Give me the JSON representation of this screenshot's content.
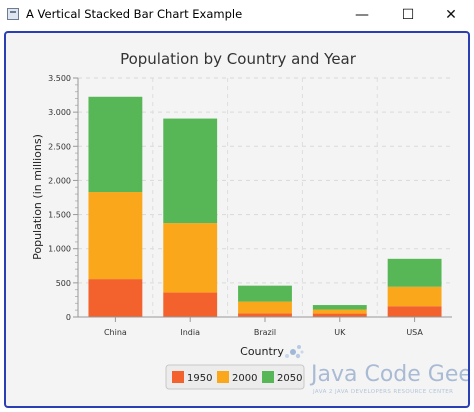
{
  "window": {
    "title": "A Vertical Stacked Bar Chart Example",
    "minimize_glyph": "—",
    "maximize_glyph": "☐",
    "close_glyph": "✕"
  },
  "watermark": {
    "line1": "Java Code Geeks",
    "line2": "JAVA 2 JAVA DEVELOPERS RESOURCE CENTER"
  },
  "chart_data": {
    "type": "bar",
    "stacked": true,
    "title": "Population by Country and Year",
    "xlabel": "Country",
    "ylabel": "Population (in millions)",
    "categories": [
      "China",
      "India",
      "Brazil",
      "UK",
      "USA"
    ],
    "series": [
      {
        "name": "1950",
        "color": "#f3622d",
        "values": [
          555,
          358,
          54,
          50,
          158
        ]
      },
      {
        "name": "2000",
        "color": "#fba71b",
        "values": [
          1275,
          1017,
          172,
          59,
          285
        ]
      },
      {
        "name": "2050",
        "color": "#57b757",
        "values": [
          1395,
          1531,
          233,
          66,
          409
        ]
      }
    ],
    "ylim": [
      0,
      3500
    ],
    "yticks": [
      0,
      500,
      1000,
      1500,
      2000,
      2500,
      3000,
      3500
    ],
    "ytick_labels": [
      "0",
      "500",
      "1.000",
      "1.500",
      "2.000",
      "2.500",
      "3.000",
      "3.500"
    ],
    "grid": true,
    "legend_position": "bottom"
  }
}
